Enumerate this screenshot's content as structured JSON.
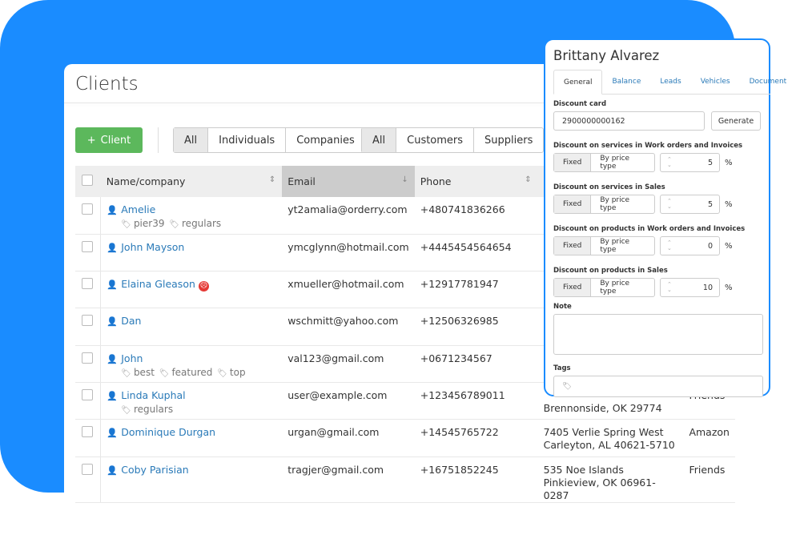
{
  "page": {
    "title": "Clients",
    "add_button": "Client"
  },
  "filters1": [
    "All",
    "Individuals",
    "Companies"
  ],
  "filters2": [
    "All",
    "Customers",
    "Suppliers"
  ],
  "table": {
    "columns": [
      "Name/company",
      "Email",
      "Phone"
    ],
    "rows": [
      {
        "name": "Amelie",
        "tags": [
          "pier39",
          "regulars"
        ],
        "email": "yt2amalia@orderry.com",
        "phone": "+480741836266",
        "address": "",
        "group": ""
      },
      {
        "name": "John Mayson",
        "tags": [],
        "email": "ymcglynn@hotmail.com",
        "phone": "+4445454564654",
        "address": "",
        "group": ""
      },
      {
        "name": "Elaina Gleason",
        "tags": [],
        "email": "xmueller@hotmail.com",
        "phone": "+12917781947",
        "address": "",
        "group": "",
        "sad": true
      },
      {
        "name": "Dan",
        "tags": [],
        "email": "wschmitt@yahoo.com",
        "phone": "+12506326985",
        "address": "",
        "group": ""
      },
      {
        "name": "John",
        "tags": [
          "best",
          "featured",
          "top"
        ],
        "email": "val123@gmail.com",
        "phone": "+0671234567",
        "address": "",
        "group": ""
      },
      {
        "name": "Linda Kuphal",
        "tags": [
          "regulars"
        ],
        "email": "user@example.com",
        "phone": "+123456789011",
        "address": "Brennonside, OK 29774",
        "group": "Friends"
      },
      {
        "name": "Dominique Durgan",
        "tags": [],
        "email": "urgan@gmail.com",
        "phone": "+14545765722",
        "address": "7405 Verlie Spring West Carleyton, AL 40621-5710",
        "group": "Amazon"
      },
      {
        "name": "Coby Parisian",
        "tags": [],
        "email": "tragjer@gmail.com",
        "phone": "+16751852245",
        "address": "535 Noe Islands Pinkieview, OK 06961-0287",
        "group": "Friends"
      }
    ]
  },
  "panel": {
    "name": "Brittany Alvarez",
    "tabs": [
      "General",
      "Balance",
      "Leads",
      "Vehicles",
      "Document"
    ],
    "discount_card_label": "Discount card",
    "discount_card_value": "2900000000162",
    "generate": "Generate",
    "discounts": [
      {
        "label": "Discount on services in Work orders and Invoices",
        "value": "5"
      },
      {
        "label": "Discount on services in Sales",
        "value": "5"
      },
      {
        "label": "Discount on products in Work orders and Invoices",
        "value": "0"
      },
      {
        "label": "Discount on products in Sales",
        "value": "10"
      }
    ],
    "fixed": "Fixed",
    "by_price_type": "By price type",
    "percent": "%",
    "note_label": "Note",
    "tags_label": "Tags"
  },
  "colors": {
    "brand": "#1a8cff",
    "add": "#5cb85c",
    "link": "#2a7ab8"
  }
}
